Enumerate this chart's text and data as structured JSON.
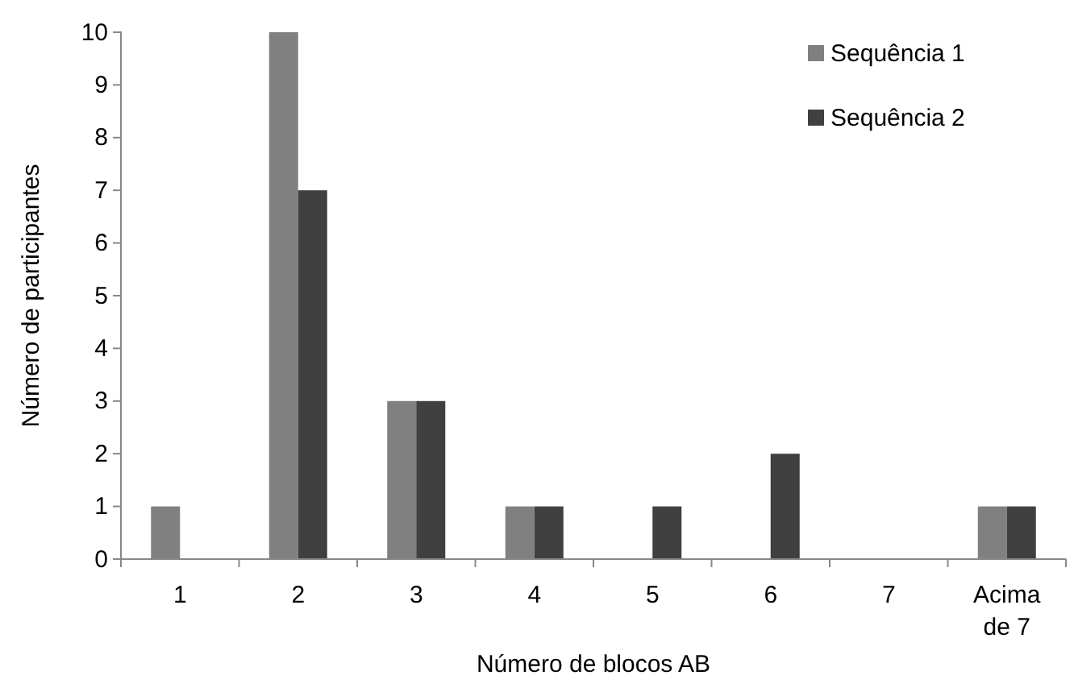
{
  "chart_data": {
    "type": "bar",
    "xlabel": "Número de blocos AB",
    "ylabel": "Número de participantes",
    "categories": [
      "1",
      "2",
      "3",
      "4",
      "5",
      "6",
      "7",
      "Acima de 7"
    ],
    "series": [
      {
        "name": "Sequência 1",
        "color": "#808080",
        "values": [
          1,
          10,
          3,
          1,
          0,
          0,
          0,
          1
        ]
      },
      {
        "name": "Sequência 2",
        "color": "#404040",
        "values": [
          0,
          7,
          3,
          1,
          1,
          2,
          0,
          1
        ]
      }
    ],
    "ylim": [
      0,
      10
    ],
    "yticks": [
      0,
      1,
      2,
      3,
      4,
      5,
      6,
      7,
      8,
      9,
      10
    ],
    "legend": "top right",
    "grid": false
  }
}
